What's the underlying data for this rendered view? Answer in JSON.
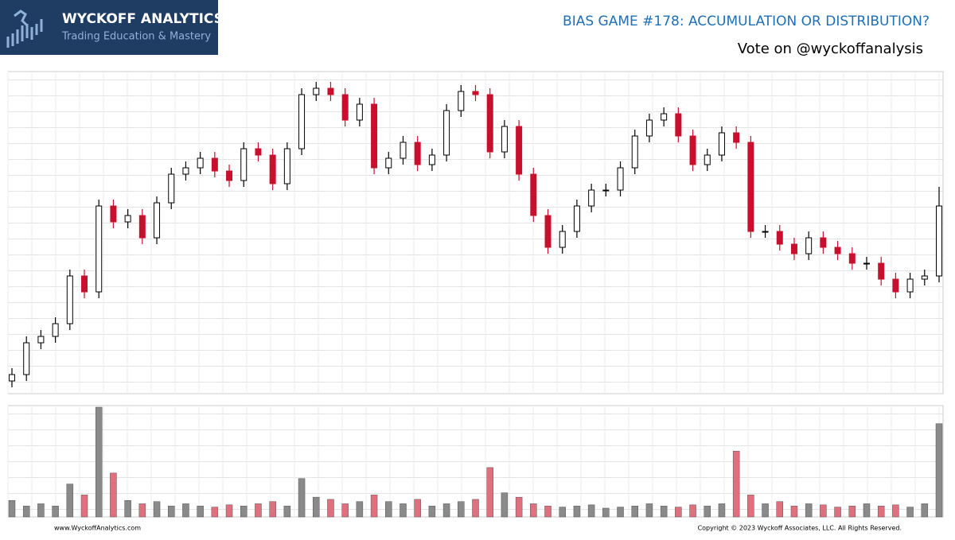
{
  "header": {
    "logo_title": "WYCKOFF ANALYTICS",
    "logo_subtitle": "Trading Education & Mastery",
    "title": "BIAS GAME #178: ACCUMULATION OR DISTRIBUTION?",
    "subtitle": "Vote on @wyckoffanalysis"
  },
  "footer": {
    "left": "www.WyckoffAnalytics.com",
    "right": "Copyright © 2023 Wyckoff Associates, LLC. All Rights Reserved."
  },
  "chart_data": [
    {
      "type": "candlestick",
      "up_color": "#ffffff",
      "down_color": "#c8102e",
      "ylim": [
        0,
        100
      ],
      "open": [
        4,
        6,
        16,
        18,
        22,
        37,
        32,
        59,
        54,
        56,
        49,
        60,
        69,
        71,
        74,
        70,
        67,
        77,
        75,
        66,
        77,
        94,
        96,
        94,
        86,
        91,
        71,
        74,
        79,
        72,
        75,
        89,
        95,
        94,
        76,
        84,
        69,
        56,
        46,
        51,
        59,
        64,
        64,
        71,
        81,
        86,
        88,
        81,
        72,
        75,
        82,
        79,
        51,
        51,
        47,
        44,
        49,
        46,
        44,
        41,
        41,
        36,
        32,
        36,
        37
      ],
      "high": [
        8,
        18,
        20,
        24,
        39,
        39,
        61,
        61,
        58,
        58,
        62,
        71,
        73,
        76,
        76,
        72,
        79,
        79,
        77,
        79,
        96,
        98,
        98,
        96,
        93,
        93,
        76,
        81,
        81,
        77,
        91,
        97,
        97,
        96,
        86,
        86,
        71,
        58,
        53,
        61,
        66,
        66,
        73,
        83,
        88,
        90,
        90,
        83,
        77,
        84,
        84,
        81,
        53,
        53,
        49,
        51,
        51,
        48,
        46,
        43,
        43,
        38,
        38,
        39,
        65
      ],
      "low": [
        2,
        4,
        14,
        16,
        20,
        30,
        30,
        52,
        52,
        47,
        47,
        58,
        67,
        69,
        68,
        65,
        65,
        73,
        64,
        64,
        75,
        92,
        92,
        84,
        84,
        69,
        69,
        72,
        70,
        70,
        73,
        87,
        92,
        74,
        74,
        67,
        54,
        44,
        44,
        49,
        57,
        62,
        62,
        69,
        79,
        84,
        79,
        70,
        70,
        73,
        77,
        49,
        49,
        45,
        42,
        42,
        44,
        42,
        39,
        39,
        34,
        30,
        30,
        34,
        35
      ],
      "close": [
        6,
        16,
        18,
        22,
        37,
        32,
        59,
        54,
        56,
        49,
        60,
        69,
        71,
        74,
        70,
        67,
        77,
        75,
        66,
        77,
        94,
        96,
        94,
        86,
        91,
        71,
        74,
        79,
        72,
        75,
        89,
        95,
        94,
        76,
        84,
        69,
        56,
        46,
        51,
        59,
        64,
        64,
        71,
        81,
        86,
        88,
        81,
        72,
        75,
        82,
        79,
        51,
        51,
        47,
        44,
        49,
        46,
        44,
        41,
        41,
        36,
        32,
        36,
        37,
        59
      ]
    },
    {
      "type": "bar",
      "up_color": "#8a8a8a",
      "down_color": "#e0707e",
      "ylim": [
        0,
        100
      ],
      "values": [
        15,
        10,
        12,
        10,
        30,
        20,
        100,
        40,
        15,
        12,
        14,
        10,
        12,
        10,
        9,
        11,
        10,
        12,
        14,
        10,
        35,
        18,
        16,
        12,
        14,
        20,
        14,
        12,
        16,
        10,
        12,
        14,
        16,
        45,
        22,
        18,
        12,
        10,
        9,
        10,
        11,
        8,
        9,
        10,
        12,
        10,
        9,
        11,
        10,
        12,
        60,
        20,
        12,
        14,
        10,
        12,
        11,
        9,
        10,
        12,
        10,
        11,
        9,
        12,
        85
      ]
    }
  ]
}
